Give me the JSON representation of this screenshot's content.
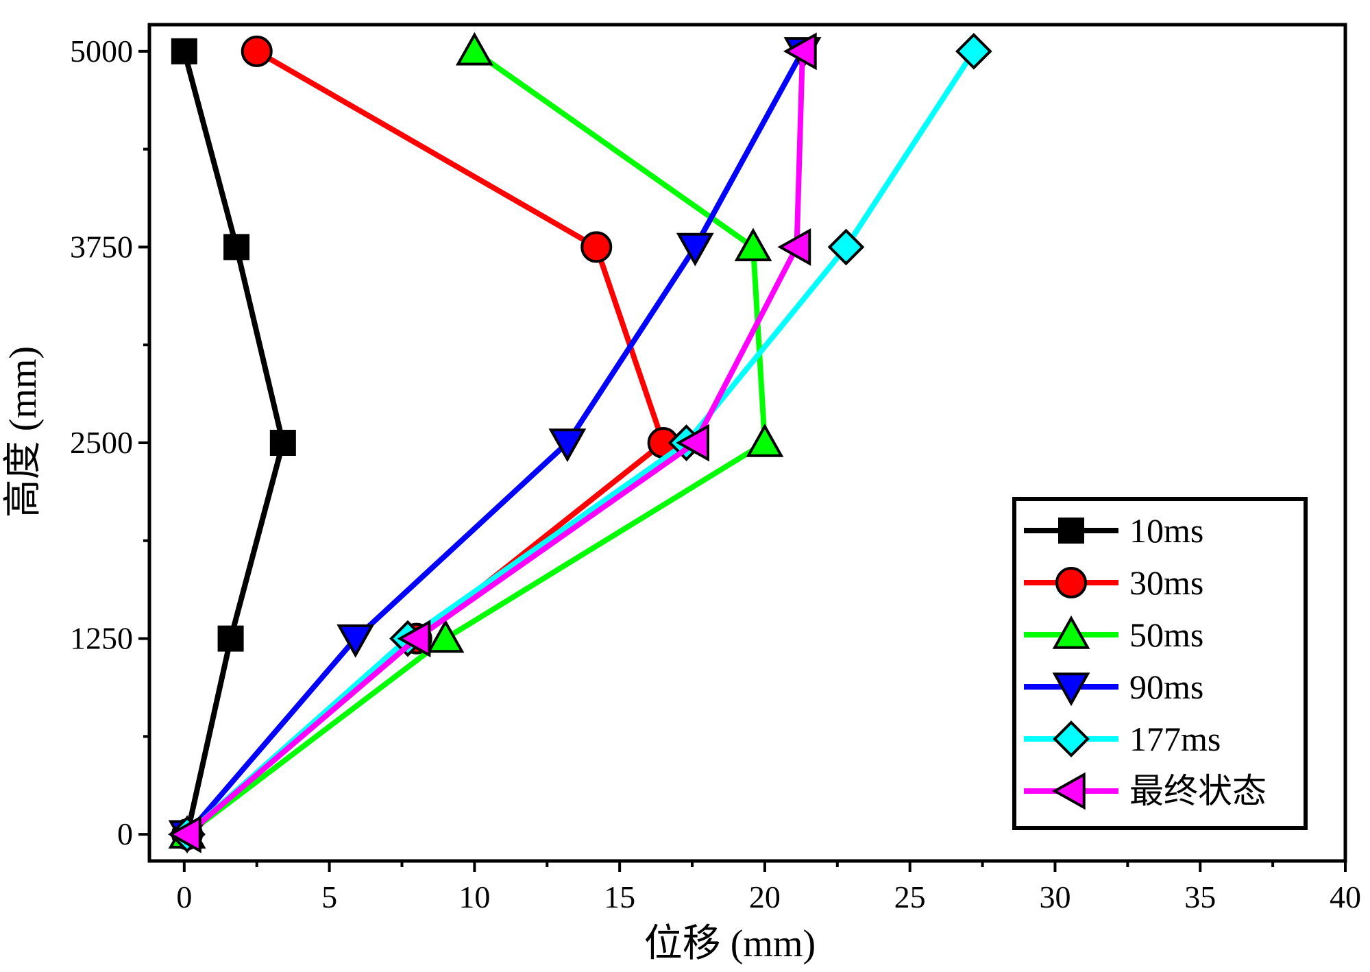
{
  "chart_data": {
    "type": "line",
    "title": "",
    "xlabel": "位移 (mm)",
    "ylabel": "高度 (mm)",
    "xlim": [
      -1.2,
      40
    ],
    "ylim": [
      -170,
      5170
    ],
    "x_ticks": [
      0,
      5,
      10,
      15,
      20,
      25,
      30,
      35,
      40
    ],
    "y_ticks": [
      0,
      1250,
      2500,
      3750,
      5000
    ],
    "x_minor_ticks": [
      2.5,
      7.5,
      12.5,
      17.5,
      22.5,
      27.5,
      32.5,
      37.5
    ],
    "y_minor_ticks": [
      625,
      1875,
      3125,
      4375
    ],
    "grid": false,
    "legend_position": "bottom-right",
    "series": [
      {
        "name": "10ms",
        "color": "#000000",
        "marker": "square",
        "x": [
          0.1,
          1.6,
          3.4,
          1.8,
          0.0
        ],
        "y": [
          0,
          1250,
          2500,
          3750,
          5000
        ]
      },
      {
        "name": "30ms",
        "color": "#ff0000",
        "marker": "circle",
        "x": [
          0.1,
          8.0,
          16.5,
          14.2,
          2.5
        ],
        "y": [
          0,
          1250,
          2500,
          3750,
          5000
        ]
      },
      {
        "name": "50ms",
        "color": "#00ff00",
        "marker": "triangle-up",
        "x": [
          0.1,
          9.0,
          20.0,
          19.6,
          10.0
        ],
        "y": [
          0,
          1250,
          2500,
          3750,
          5000
        ]
      },
      {
        "name": "90ms",
        "color": "#0000ff",
        "marker": "triangle-down",
        "x": [
          0.1,
          5.9,
          13.2,
          17.6,
          21.3
        ],
        "y": [
          0,
          1250,
          2500,
          3750,
          5000
        ]
      },
      {
        "name": "177ms",
        "color": "#00ffff",
        "marker": "diamond",
        "x": [
          0.1,
          7.7,
          17.3,
          22.8,
          27.2
        ],
        "y": [
          0,
          1250,
          2500,
          3750,
          5000
        ]
      },
      {
        "name": "最终状态",
        "color": "#ff00ff",
        "marker": "triangle-left",
        "x": [
          0.1,
          8.0,
          17.6,
          21.1,
          21.3
        ],
        "y": [
          0,
          1250,
          2500,
          3750,
          5000
        ]
      }
    ]
  }
}
